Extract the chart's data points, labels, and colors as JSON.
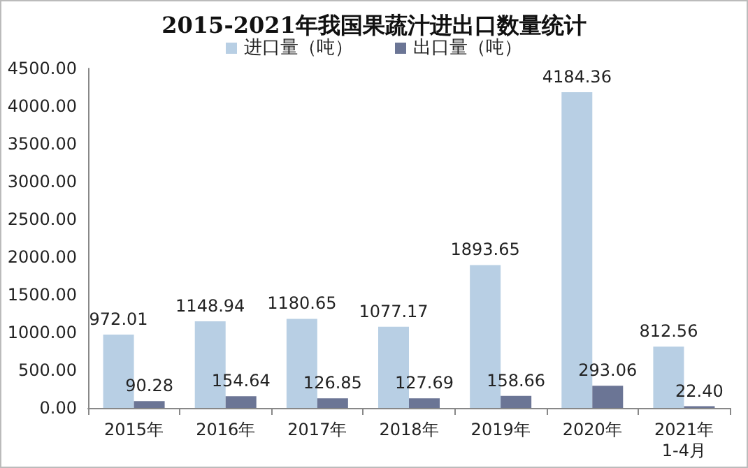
{
  "chart_data": {
    "type": "bar",
    "title": "2015-2021年我国果蔬汁进出口数量统计",
    "categories": [
      "2015年",
      "2016年",
      "2017年",
      "2018年",
      "2019年",
      "2020年",
      "2021年\n1-4月"
    ],
    "series": [
      {
        "name": "进口量（吨）",
        "color": "#b8cfe4",
        "values": [
          972.01,
          1148.94,
          1180.65,
          1077.17,
          1893.65,
          4184.36,
          812.56
        ],
        "value_labels": [
          "972.01",
          "1148.94",
          "1180.65",
          "1077.17",
          "1893.65",
          "4184.36",
          "812.56"
        ]
      },
      {
        "name": "出口量（吨）",
        "color": "#6b7595",
        "values": [
          90.28,
          154.64,
          126.85,
          127.69,
          158.66,
          293.06,
          22.4
        ],
        "value_labels": [
          "90.28",
          "154.64",
          "126.85",
          "127.69",
          "158.66",
          "293.06",
          "22.40"
        ]
      }
    ],
    "ylim": [
      0,
      4500
    ],
    "yticks": [
      {
        "value": 0,
        "label": "0.00"
      },
      {
        "value": 500,
        "label": "500.00"
      },
      {
        "value": 1000,
        "label": "1000.00"
      },
      {
        "value": 1500,
        "label": "1500.00"
      },
      {
        "value": 2000,
        "label": "2000.00"
      },
      {
        "value": 2500,
        "label": "2500.00"
      },
      {
        "value": 3000,
        "label": "3000.00"
      },
      {
        "value": 3500,
        "label": "3500.00"
      },
      {
        "value": 4000,
        "label": "4000.00"
      },
      {
        "value": 4500,
        "label": "4500.00"
      }
    ],
    "grid": false,
    "legend": "top"
  }
}
